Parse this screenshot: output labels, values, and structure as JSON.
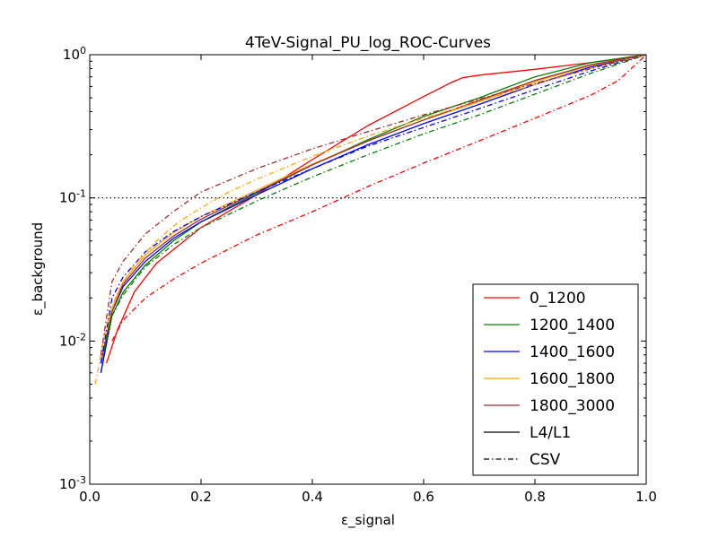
{
  "chart_data": {
    "type": "line",
    "title": "4TeV-Signal_PU_log_ROC-Curves",
    "xlabel": "ε_signal",
    "ylabel": "ε_background",
    "xlim": [
      0.0,
      1.0
    ],
    "ylim": [
      0.001,
      1.0
    ],
    "yscale": "log",
    "xticks": [
      "0.0",
      "0.2",
      "0.4",
      "0.6",
      "0.8",
      "1.0"
    ],
    "yticks": [
      {
        "value": 0.001,
        "base": "10",
        "exp": "-3"
      },
      {
        "value": 0.01,
        "base": "10",
        "exp": "-2"
      },
      {
        "value": 0.1,
        "base": "10",
        "exp": "-1"
      },
      {
        "value": 1.0,
        "base": "10",
        "exp": "0"
      }
    ],
    "reference_line": {
      "y": 0.1,
      "style": "dotted",
      "color": "#000000"
    },
    "grid": false,
    "legend_position": "bottom-right",
    "legend": [
      {
        "label": "0_1200",
        "color": "#ff0000",
        "dash": "solid"
      },
      {
        "label": "1200_1400",
        "color": "#008000",
        "dash": "solid"
      },
      {
        "label": "1400_1600",
        "color": "#0000ff",
        "dash": "solid"
      },
      {
        "label": "1600_1800",
        "color": "#ffa500",
        "dash": "solid"
      },
      {
        "label": "1800_3000",
        "color": "#a52a2a",
        "dash": "solid"
      },
      {
        "label": "L4/L1",
        "color": "#000000",
        "dash": "solid"
      },
      {
        "label": "CSV",
        "color": "#000000",
        "dash": "dashdot"
      }
    ],
    "series": [
      {
        "name": "0_1200 L4/L1",
        "color": "#ff0000",
        "dash": "solid",
        "x": [
          0.03,
          0.05,
          0.08,
          0.12,
          0.2,
          0.3,
          0.4,
          0.5,
          0.6,
          0.65,
          0.67,
          0.7,
          0.8,
          0.9,
          1.0
        ],
        "y": [
          0.007,
          0.012,
          0.022,
          0.035,
          0.062,
          0.105,
          0.185,
          0.32,
          0.51,
          0.64,
          0.69,
          0.72,
          0.79,
          0.88,
          1.0
        ]
      },
      {
        "name": "1200_1400 L4/L1",
        "color": "#008000",
        "dash": "solid",
        "x": [
          0.02,
          0.04,
          0.06,
          0.1,
          0.15,
          0.2,
          0.3,
          0.4,
          0.5,
          0.6,
          0.7,
          0.8,
          0.9,
          1.0
        ],
        "y": [
          0.006,
          0.015,
          0.022,
          0.034,
          0.05,
          0.068,
          0.108,
          0.17,
          0.255,
          0.37,
          0.5,
          0.7,
          0.88,
          1.0
        ]
      },
      {
        "name": "1400_1600 L4/L1",
        "color": "#0000ff",
        "dash": "solid",
        "x": [
          0.02,
          0.04,
          0.06,
          0.1,
          0.15,
          0.2,
          0.3,
          0.4,
          0.5,
          0.6,
          0.7,
          0.8,
          0.9,
          1.0
        ],
        "y": [
          0.006,
          0.016,
          0.024,
          0.036,
          0.052,
          0.068,
          0.105,
          0.16,
          0.235,
          0.33,
          0.45,
          0.62,
          0.82,
          1.0
        ]
      },
      {
        "name": "1600_1800 L4/L1",
        "color": "#ffa500",
        "dash": "solid",
        "x": [
          0.02,
          0.04,
          0.06,
          0.1,
          0.15,
          0.2,
          0.3,
          0.4,
          0.5,
          0.6,
          0.7,
          0.8,
          0.9,
          1.0
        ],
        "y": [
          0.007,
          0.017,
          0.026,
          0.04,
          0.057,
          0.074,
          0.113,
          0.172,
          0.25,
          0.35,
          0.47,
          0.65,
          0.84,
          1.0
        ]
      },
      {
        "name": "1800_3000 L4/L1",
        "color": "#a52a2a",
        "dash": "solid",
        "x": [
          0.02,
          0.04,
          0.06,
          0.1,
          0.15,
          0.2,
          0.3,
          0.4,
          0.5,
          0.6,
          0.7,
          0.8,
          0.9,
          1.0
        ],
        "y": [
          0.007,
          0.016,
          0.025,
          0.038,
          0.054,
          0.071,
          0.11,
          0.17,
          0.25,
          0.35,
          0.48,
          0.66,
          0.85,
          1.0
        ]
      },
      {
        "name": "0_1200 CSV",
        "color": "#ff0000",
        "dash": "dashdot",
        "x": [
          0.04,
          0.06,
          0.1,
          0.15,
          0.2,
          0.3,
          0.4,
          0.5,
          0.6,
          0.7,
          0.8,
          0.9,
          0.95,
          1.0
        ],
        "y": [
          0.01,
          0.014,
          0.02,
          0.027,
          0.035,
          0.055,
          0.08,
          0.12,
          0.175,
          0.25,
          0.36,
          0.52,
          0.66,
          1.0
        ]
      },
      {
        "name": "1200_1400 CSV",
        "color": "#008000",
        "dash": "dashdot",
        "x": [
          0.02,
          0.04,
          0.06,
          0.1,
          0.15,
          0.2,
          0.3,
          0.4,
          0.5,
          0.6,
          0.7,
          0.8,
          0.9,
          1.0
        ],
        "y": [
          0.007,
          0.015,
          0.021,
          0.033,
          0.047,
          0.062,
          0.095,
          0.14,
          0.2,
          0.28,
          0.38,
          0.53,
          0.74,
          1.0
        ]
      },
      {
        "name": "1400_1600 CSV",
        "color": "#0000ff",
        "dash": "dashdot",
        "x": [
          0.02,
          0.04,
          0.06,
          0.1,
          0.15,
          0.2,
          0.3,
          0.4,
          0.5,
          0.6,
          0.7,
          0.8,
          0.9,
          1.0
        ],
        "y": [
          0.007,
          0.02,
          0.028,
          0.042,
          0.058,
          0.074,
          0.11,
          0.16,
          0.23,
          0.31,
          0.42,
          0.57,
          0.77,
          1.0
        ]
      },
      {
        "name": "1600_1800 CSV",
        "color": "#ffa500",
        "dash": "dashdot",
        "x": [
          0.01,
          0.03,
          0.05,
          0.08,
          0.12,
          0.16,
          0.2,
          0.25,
          0.3,
          0.4,
          0.5,
          0.6,
          0.7,
          0.8,
          0.9,
          1.0
        ],
        "y": [
          0.005,
          0.013,
          0.022,
          0.034,
          0.05,
          0.068,
          0.085,
          0.11,
          0.135,
          0.195,
          0.27,
          0.36,
          0.47,
          0.62,
          0.8,
          1.0
        ]
      },
      {
        "name": "1800_3000 CSV",
        "color": "#a52a2a",
        "dash": "dashdot",
        "x": [
          0.02,
          0.04,
          0.06,
          0.1,
          0.15,
          0.2,
          0.3,
          0.4,
          0.5,
          0.6,
          0.7,
          0.8,
          0.9,
          1.0
        ],
        "y": [
          0.008,
          0.026,
          0.036,
          0.056,
          0.08,
          0.11,
          0.16,
          0.22,
          0.29,
          0.38,
          0.49,
          0.63,
          0.8,
          1.0
        ]
      }
    ]
  }
}
